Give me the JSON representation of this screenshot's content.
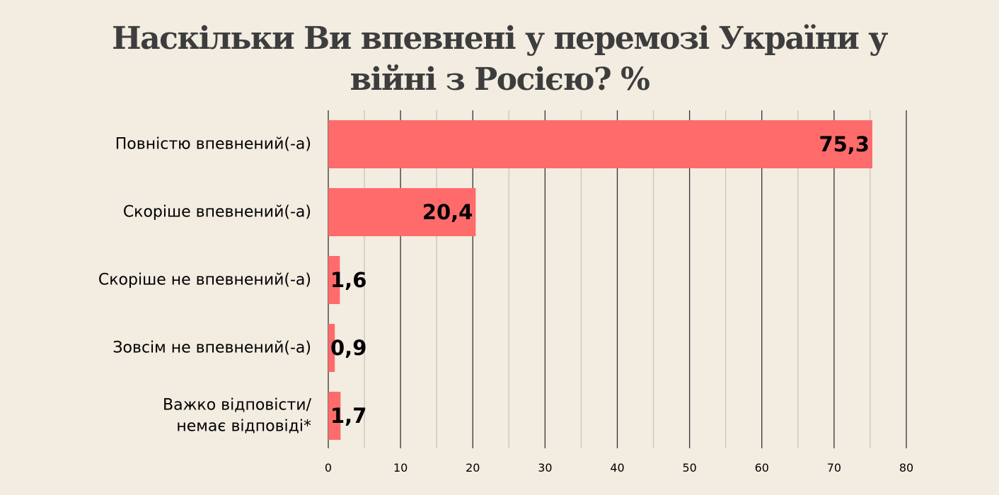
{
  "title_lines": [
    "Наскільки Ви впевнені у перемозі України у",
    "війні з Росією? %"
  ],
  "colors": {
    "background": "#f2ece1",
    "bar": "#ff6b6b",
    "major_grid": "#333333",
    "minor_grid": "#c8c6b8",
    "text": "#000000",
    "title": "#3d3d3d"
  },
  "chart_data": {
    "type": "bar",
    "orientation": "horizontal",
    "title": "Наскільки Ви впевнені у перемозі України у війні з Росією? %",
    "categories": [
      [
        "Повністю впевнений(-а)"
      ],
      [
        "Скоріше впевнений(-а)"
      ],
      [
        "Скоріше не впевнений(-а)"
      ],
      [
        "Зовсім не впевнений(-а)"
      ],
      [
        "Важко відповісти/",
        "немає відповіді*"
      ]
    ],
    "values": [
      75.3,
      20.4,
      1.6,
      0.9,
      1.7
    ],
    "value_labels": [
      "75,3",
      "20,4",
      "1,6",
      "0,9",
      "1,7"
    ],
    "xlim": [
      0,
      80
    ],
    "x_ticks": [
      0,
      10,
      20,
      30,
      40,
      50,
      60,
      70,
      80
    ],
    "minor_gridlines": true,
    "xlabel": "",
    "ylabel": "",
    "legend": "none"
  }
}
